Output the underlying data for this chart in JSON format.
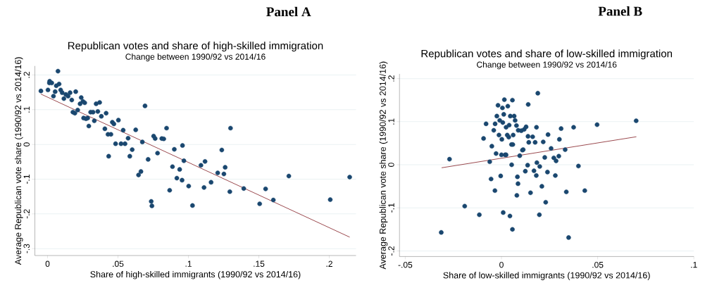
{
  "chart_data": [
    {
      "type": "scatter",
      "title": "Republican votes and share of high-skilled immigration",
      "subtitle": "Change between 1990/92 vs 2014/16",
      "xlabel": "Share of high-skilled immigrants (1990/92 vs 2014/16)",
      "ylabel": "Average Republican vote share (1990/92 vs 2014/16)",
      "annotations": [
        "Panel A"
      ],
      "grid": "y",
      "marker": "circle",
      "xlim": [
        -0.009,
        0.219
      ],
      "ylim": [
        -0.32,
        0.226
      ],
      "xticks": [
        0,
        {
          "value": 0.05,
          "label": ".05"
        },
        {
          "value": 0.1,
          "label": ".1"
        },
        {
          "value": 0.15,
          "label": ".15"
        },
        {
          "value": 0.2,
          "label": ".2"
        }
      ],
      "yticks": [
        {
          "value": -0.3,
          "label": "-.3"
        },
        {
          "value": -0.2,
          "label": "-.2"
        },
        {
          "value": -0.1,
          "label": "-.1"
        },
        0,
        {
          "value": 0.1,
          "label": ".1"
        },
        {
          "value": 0.2,
          "label": ".2"
        }
      ],
      "series": [
        {
          "color": "#1a476f",
          "x": [
            -0.0047,
            0.0013,
            0.0003,
            0.0015,
            0.003,
            0.0042,
            0.0054,
            0.0062,
            0.0074,
            0.0082,
            0.0093,
            0.0104,
            0.0116,
            0.013,
            0.0146,
            0.016,
            0.0172,
            0.018,
            0.02,
            0.0194,
            0.0214,
            0.0231,
            0.0239,
            0.0251,
            0.0264,
            0.0256,
            0.0273,
            0.0293,
            0.0285,
            0.0306,
            0.0323,
            0.0332,
            0.0345,
            0.037,
            0.0357,
            0.0382,
            0.0407,
            0.0416,
            0.0429,
            0.045,
            0.0434,
            0.046,
            0.0471,
            0.0483,
            0.0503,
            0.0522,
            0.0537,
            0.055,
            0.0572,
            0.0584,
            0.0601,
            0.0626,
            0.0646,
            0.0663,
            0.0673,
            0.0692,
            0.0714,
            0.0736,
            0.0741,
            0.0753,
            0.0764,
            0.0781,
            0.0811,
            0.0825,
            0.0845,
            0.0867,
            0.0887,
            0.09,
            0.0918,
            0.0938,
            0.0958,
            0.0955,
            0.0968,
            0.1002,
            0.1029,
            0.1089,
            0.1111,
            0.1118,
            0.1161,
            0.1208,
            0.1237,
            0.1252,
            0.1261,
            0.1294,
            0.1299,
            0.1393,
            0.1506,
            0.1548,
            0.1603,
            0.1713,
            0.2007,
            0.2145
          ],
          "values": [
            0.154,
            0.177,
            0.157,
            0.182,
            0.177,
            0.139,
            0.152,
            0.169,
            0.211,
            0.174,
            0.157,
            0.149,
            0.132,
            0.144,
            0.139,
            0.149,
            0.128,
            0.093,
            0.152,
            0.09,
            0.099,
            0.117,
            0.135,
            0.124,
            0.12,
            0.076,
            0.074,
            0.053,
            0.076,
            0.093,
            0.093,
            0.068,
            0.117,
            0.121,
            0.095,
            0.081,
            0.045,
            0.09,
            0.029,
            0.029,
            -0.034,
            0.064,
            0.059,
            0.002,
            0.07,
            0.002,
            0.041,
            0.002,
            0.018,
            -0.034,
            -0.015,
            0.042,
            -0.088,
            -0.078,
            0.007,
            0.111,
            -0.043,
            -0.164,
            -0.177,
            0.024,
            0.017,
            -0.025,
            0.017,
            0.016,
            0.047,
            -0.132,
            -0.064,
            -0.014,
            -0.097,
            -0.072,
            -0.003,
            -0.103,
            -0.047,
            -0.12,
            -0.176,
            -0.06,
            -0.124,
            -0.049,
            -0.109,
            -0.082,
            -0.016,
            -0.085,
            -0.066,
            -0.136,
            0.047,
            -0.127,
            -0.171,
            -0.128,
            -0.16,
            -0.091,
            -0.159,
            -0.094
          ]
        },
        {
          "type": "line",
          "color": "#90353b",
          "marker": "none",
          "x": [
            -0.0047,
            0.2145
          ],
          "values": [
            0.145,
            -0.267
          ]
        }
      ]
    },
    {
      "type": "scatter",
      "title": "Republican votes and share of low-skilled immigration",
      "subtitle": "Change between 1990/92 vs 2014/16",
      "xlabel": "Share of low-skilled immigrants (1990/92 vs 2014/16)",
      "ylabel": "Average Republican vote share (1990/92 vs 2014/16)",
      "annotations": [
        "Panel B"
      ],
      "grid": "y",
      "marker": "circle",
      "xlim": [
        -0.053,
        0.1
      ],
      "ylim": [
        -0.213,
        0.211
      ],
      "xticks": [
        {
          "value": -0.05,
          "label": "-.05"
        },
        0,
        {
          "value": 0.05,
          "label": ".05"
        },
        {
          "value": 0.1,
          "label": ".1"
        }
      ],
      "yticks": [
        {
          "value": -0.2,
          "label": "-.2"
        },
        {
          "value": -0.1,
          "label": "-.1"
        },
        0,
        {
          "value": 0.1,
          "label": ".1"
        },
        {
          "value": 0.2,
          "label": ".2"
        }
      ],
      "series": [
        {
          "color": "#1a476f",
          "x": [
            -0.0313,
            -0.027,
            -0.0191,
            -0.0115,
            -0.0093,
            -0.008,
            -0.0061,
            -0.0054,
            -0.005,
            -0.004,
            -0.0034,
            -0.0033,
            -0.0028,
            -0.0024,
            -0.0018,
            -0.0013,
            -0.0009,
            -0.0004,
            0.0,
            0.0002,
            0.0005,
            0.0007,
            0.0009,
            0.0012,
            0.0015,
            0.0019,
            0.0024,
            0.0024,
            0.003,
            0.0033,
            0.0038,
            0.004,
            0.0044,
            0.0046,
            0.0052,
            0.0053,
            0.0057,
            0.0057,
            0.0059,
            0.0061,
            0.0066,
            0.0071,
            0.0078,
            0.0083,
            0.008,
            0.0086,
            0.0087,
            0.0095,
            0.0103,
            0.0109,
            0.0113,
            0.0118,
            0.0124,
            0.0128,
            0.0136,
            0.0138,
            0.0142,
            0.0151,
            0.0139,
            0.0189,
            0.0162,
            0.0175,
            0.0182,
            0.0217,
            0.0242,
            0.0258,
            0.0225,
            0.0272,
            0.0284,
            0.0298,
            0.0301,
            0.031,
            0.0331,
            0.0375,
            0.0497,
            0.07,
            0.0184,
            0.0199,
            0.0169,
            0.0181,
            0.0239,
            0.028,
            0.04,
            0.021,
            0.0337,
            0.0433,
            0.023,
            0.0197,
            0.0349
          ],
          "values": [
            -0.157,
            0.013,
            -0.096,
            -0.116,
            0.061,
            0.095,
            0.007,
            -0.033,
            0.043,
            0.08,
            -0.06,
            0.095,
            0.026,
            0.113,
            0.138,
            0.069,
            0.103,
            -0.026,
            0.023,
            0.059,
            0.132,
            0.098,
            -0.111,
            0.117,
            0.151,
            0.023,
            0.023,
            0.087,
            0.069,
            0.136,
            0.064,
            0.092,
            -0.119,
            0.113,
            0.047,
            0.0,
            0.15,
            -0.15,
            0.047,
            0.069,
            0.113,
            0.103,
            0.091,
            -0.028,
            -0.071,
            -0.044,
            0.08,
            0.021,
            0.079,
            0.034,
            0.035,
            0.082,
            -0.015,
            0.088,
            -0.001,
            0.066,
            0.052,
            -0.065,
            0.14,
            0.166,
            0.065,
            0.052,
            0.087,
            0.053,
            0.07,
            0.038,
            0.017,
            0.016,
            0.009,
            0.02,
            0.059,
            0.084,
            0.035,
            0.087,
            0.093,
            0.102,
            0.005,
            -0.004,
            -0.014,
            -0.025,
            -0.017,
            -0.025,
            -0.003,
            -0.05,
            -0.063,
            -0.06,
            -0.087,
            -0.116,
            -0.169
          ]
        },
        {
          "type": "line",
          "color": "#90353b",
          "marker": "none",
          "x": [
            -0.0311,
            0.0701
          ],
          "values": [
            -0.007,
            0.065
          ]
        }
      ]
    }
  ]
}
